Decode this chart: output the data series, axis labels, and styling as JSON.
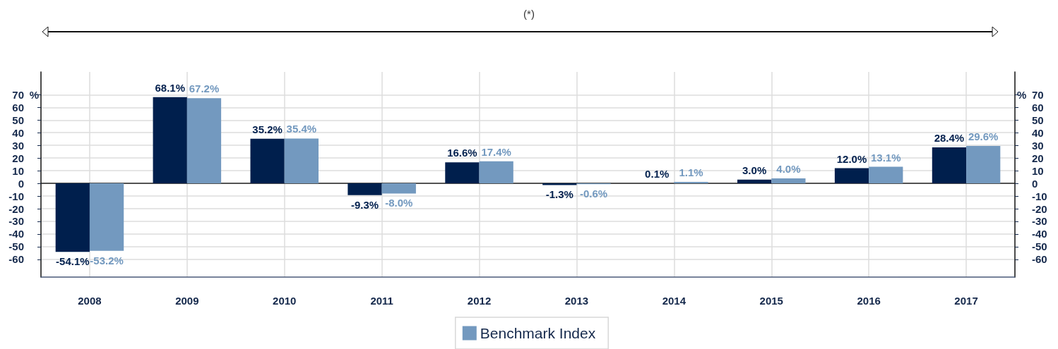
{
  "chart_data": {
    "type": "bar",
    "categories": [
      "2008",
      "2009",
      "2010",
      "2011",
      "2012",
      "2013",
      "2014",
      "2015",
      "2016",
      "2017"
    ],
    "series": [
      {
        "color": "#001f4d",
        "values": [
          -54.1,
          68.1,
          35.2,
          -9.3,
          16.6,
          -1.3,
          0.1,
          3.0,
          12.0,
          28.4
        ],
        "value_labels": [
          "-54.1%",
          "68.1%",
          "35.2%",
          "-9.3%",
          "16.6%",
          "-1.3%",
          "0.1%",
          "3.0%",
          "12.0%",
          "28.4%"
        ]
      },
      {
        "name": "Benchmark Index",
        "color": "#7399bf",
        "values": [
          -53.2,
          67.2,
          35.4,
          -8.0,
          17.4,
          -0.6,
          1.1,
          4.0,
          13.1,
          29.6
        ],
        "value_labels": [
          "-53.2%",
          "67.2%",
          "35.4%",
          "-8.0%",
          "17.4%",
          "-0.6%",
          "1.1%",
          "4.0%",
          "13.1%",
          "29.6%"
        ]
      }
    ],
    "ylabel": "%",
    "y2label": "%",
    "ylim": [
      -74,
      88
    ],
    "yticks": [
      -60,
      -50,
      -40,
      -30,
      -20,
      -10,
      0,
      10,
      20,
      30,
      40,
      50,
      60,
      70
    ],
    "y2lim": [
      -74,
      88
    ],
    "y2ticks": [
      -60,
      -50,
      -40,
      -30,
      -20,
      -10,
      0,
      10,
      20,
      30,
      40,
      50,
      60,
      70
    ],
    "grid": true,
    "legend": "bottom",
    "annotations": [
      "(*)"
    ]
  }
}
